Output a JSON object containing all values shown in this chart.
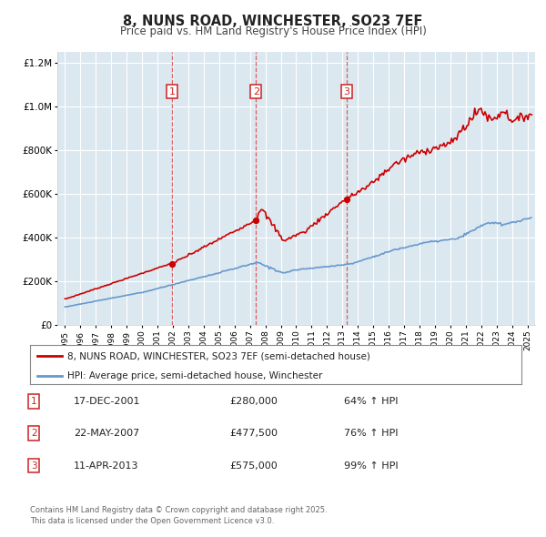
{
  "title": "8, NUNS ROAD, WINCHESTER, SO23 7EF",
  "subtitle": "Price paid vs. HM Land Registry's House Price Index (HPI)",
  "legend_label_red": "8, NUNS ROAD, WINCHESTER, SO23 7EF (semi-detached house)",
  "legend_label_blue": "HPI: Average price, semi-detached house, Winchester",
  "footer_line1": "Contains HM Land Registry data © Crown copyright and database right 2025.",
  "footer_line2": "This data is licensed under the Open Government Licence v3.0.",
  "transactions": [
    {
      "num": 1,
      "date": "17-DEC-2001",
      "price": "£280,000",
      "hpi": "64% ↑ HPI",
      "x": 2001.96
    },
    {
      "num": 2,
      "date": "22-MAY-2007",
      "price": "£477,500",
      "hpi": "76% ↑ HPI",
      "x": 2007.39
    },
    {
      "num": 3,
      "date": "11-APR-2013",
      "price": "£575,000",
      "hpi": "99% ↑ HPI",
      "x": 2013.28
    }
  ],
  "red_color": "#cc0000",
  "blue_color": "#6699cc",
  "vline_color": "#dd4444",
  "bg_color": "#ffffff",
  "plot_bg": "#dce8f0",
  "grid_color": "#ffffff",
  "annotation_box_color": "#cc2222",
  "ylim": [
    0,
    1250000
  ],
  "xlim_start": 1994.5,
  "xlim_end": 2025.5
}
